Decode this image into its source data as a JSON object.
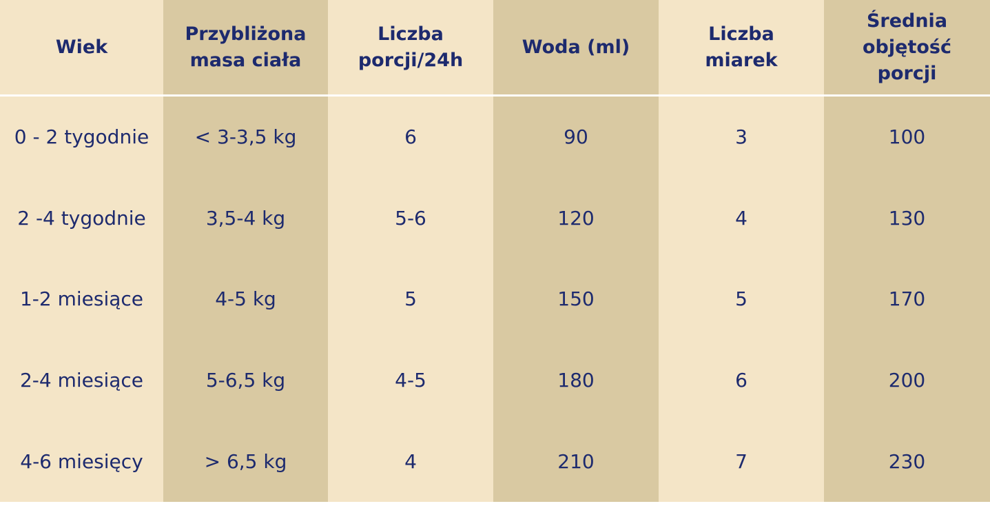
{
  "table": {
    "header": [
      [
        "Wiek"
      ],
      [
        "Przybliżona",
        "masa ciała"
      ],
      [
        "Liczba",
        "porcji/24h"
      ],
      [
        "Woda (ml)"
      ],
      [
        "Liczba",
        "miarek"
      ],
      [
        "Średnia",
        "objętość",
        "porcji"
      ]
    ],
    "rows": [
      [
        "0 - 2 tygodnie",
        "< 3-3,5 kg",
        "6",
        "90",
        "3",
        "100"
      ],
      [
        "2 -4 tygodnie",
        "3,5-4 kg",
        "5-6",
        "120",
        "4",
        "130"
      ],
      [
        "1-2 miesiące",
        "4-5 kg",
        "5",
        "150",
        "5",
        "170"
      ],
      [
        "2-4 miesiące",
        "5-6,5 kg",
        "4-5",
        "180",
        "6",
        "200"
      ],
      [
        "4-6 miesięcy",
        "> 6,5 kg",
        "4",
        "210",
        "7",
        "230"
      ]
    ]
  }
}
